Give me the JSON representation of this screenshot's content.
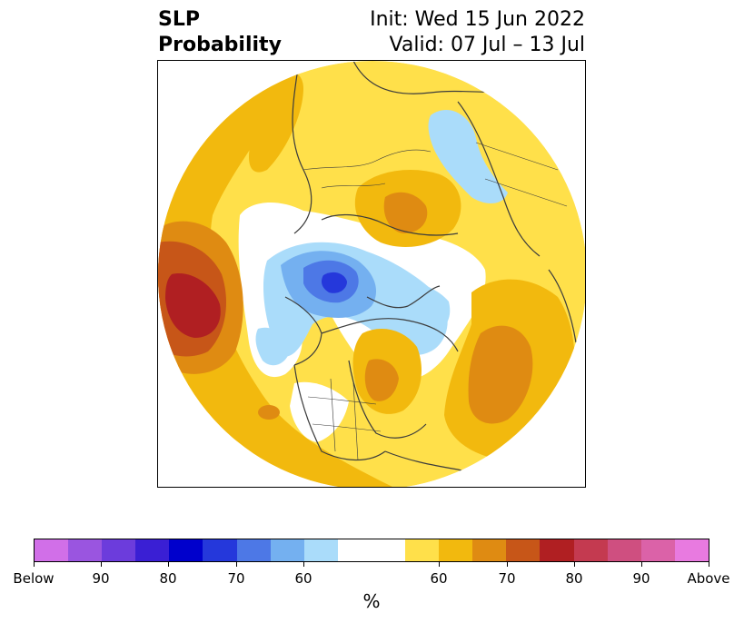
{
  "title": {
    "line1_left": "SLP",
    "line2_left": "Probability",
    "line1_right": "Init: Wed 15 Jun 2022",
    "line2_right": "Valid: 07 Jul – 13 Jul"
  },
  "colors": {
    "below_90plus": "#d16fe8",
    "below_90": "#9a55e0",
    "below_85": "#6c3cdc",
    "below_80": "#3a1fd4",
    "below_75": "#0000cc",
    "below_70": "#2538db",
    "below_65": "#4d78e6",
    "below_60": "#74b0f0",
    "below_55": "#aadcfa",
    "neutral": "#ffffff",
    "above_55": "#ffe04a",
    "above_60": "#f2b90e",
    "above_65": "#df8b12",
    "above_70": "#c75618",
    "above_75": "#b01f22",
    "above_80": "#c43a50",
    "above_85": "#cf4f80",
    "above_90": "#db62a8",
    "above_90plus": "#e87ae0",
    "land_outline": "#3c3c3c"
  },
  "colorbar": {
    "segments": [
      "#d16fe8",
      "#9a55e0",
      "#6c3cdc",
      "#3a1fd4",
      "#0000cc",
      "#2538db",
      "#4d78e6",
      "#74b0f0",
      "#aadcfa",
      "#ffffff",
      "#ffffff",
      "#ffe04a",
      "#f2b90e",
      "#df8b12",
      "#c75618",
      "#b01f22",
      "#c43a50",
      "#cf4f80",
      "#db62a8",
      "#e87ae0"
    ],
    "tick_labels": [
      "Below",
      "90",
      "80",
      "70",
      "60",
      "60",
      "70",
      "80",
      "90",
      "Above"
    ],
    "unit": "%"
  }
}
